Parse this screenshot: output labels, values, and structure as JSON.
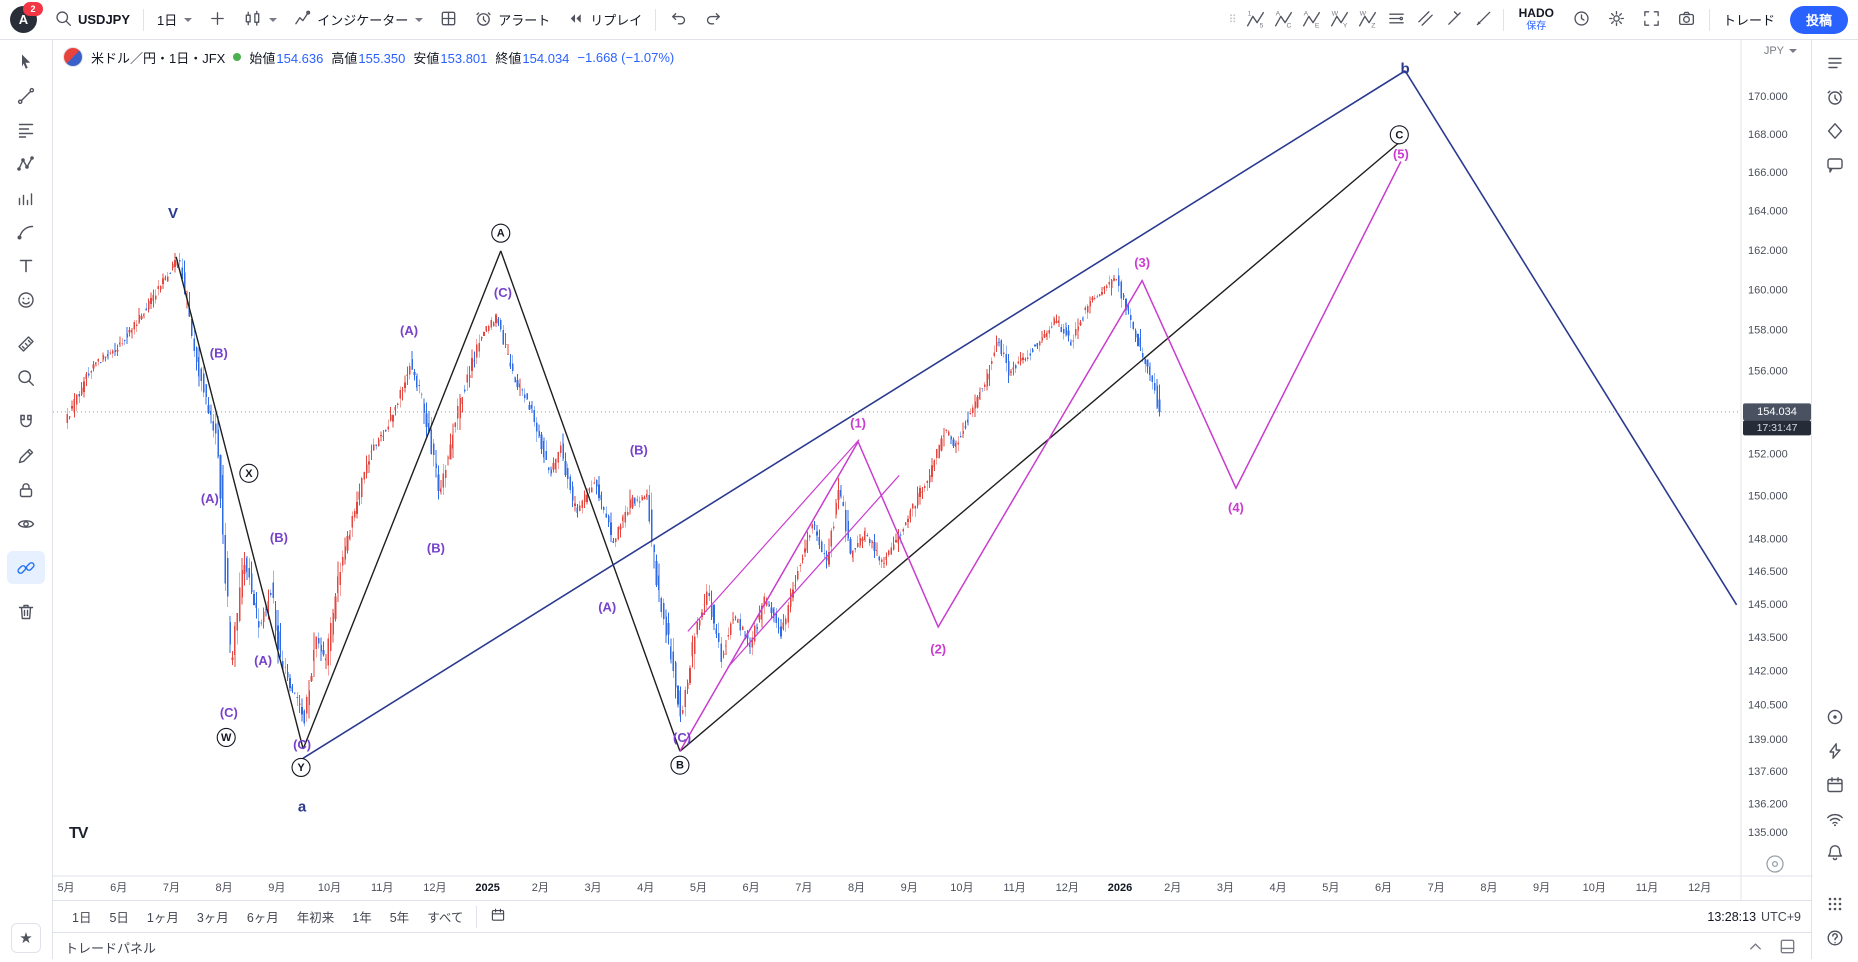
{
  "topbar": {
    "avatar_initial": "A",
    "notification_badge": "2",
    "symbol": "USDJPY",
    "interval_label": "1日",
    "indicators_label": "インジケーター",
    "alert_label": "アラート",
    "replay_label": "リプレイ",
    "wave_tools": [
      {
        "name": "elliott-impulse-wave-tool",
        "letters": [
          "1",
          "5"
        ]
      },
      {
        "name": "elliott-correction-wave-tool",
        "letters": [
          "A",
          "C"
        ]
      },
      {
        "name": "elliott-triangle-wave-tool",
        "letters": [
          "A",
          "E"
        ]
      },
      {
        "name": "elliott-double-combo-tool",
        "letters": [
          "W",
          "Y"
        ]
      },
      {
        "name": "elliott-triple-combo-tool",
        "letters": [
          "W",
          "Z"
        ]
      }
    ],
    "template_name": "HADO",
    "save_label": "保存",
    "trade_label": "トレード",
    "publish_label": "投稿",
    "accent_color": "#2962ff"
  },
  "legend": {
    "title": "米ドル／円・1日・JFX",
    "market_open_color": "#4caf50",
    "open_label": "始値",
    "open": "154.636",
    "high_label": "高値",
    "high": "155.350",
    "low_label": "安値",
    "low": "153.801",
    "close_label": "終値",
    "close": "154.034",
    "change": "−1.668 (−1.07%)",
    "value_color": "#2962ff"
  },
  "price_scale": {
    "currency": "JPY",
    "labels": [
      "170.000",
      "168.000",
      "166.000",
      "164.000",
      "162.000",
      "160.000",
      "158.000",
      "156.000",
      "152.000",
      "150.000",
      "148.000",
      "146.500",
      "145.000",
      "143.500",
      "142.000",
      "140.500",
      "139.000",
      "137.600",
      "136.200",
      "135.000"
    ],
    "last_price": "154.034",
    "countdown": "17:31:47"
  },
  "time_scale": {
    "labels": [
      "5月",
      "6月",
      "7月",
      "8月",
      "9月",
      "10月",
      "11月",
      "12月",
      "2025",
      "2月",
      "3月",
      "4月",
      "5月",
      "6月",
      "7月",
      "8月",
      "9月",
      "10月",
      "11月",
      "12月",
      "2026",
      "2月",
      "3月",
      "4月",
      "5月",
      "6月",
      "7月",
      "8月",
      "9月",
      "10月",
      "11月",
      "12月"
    ]
  },
  "range_toolbar": {
    "ranges": [
      "1日",
      "5日",
      "1ヶ月",
      "3ヶ月",
      "6ヶ月",
      "年初来",
      "1年",
      "5年",
      "すべて"
    ],
    "clock": "13:28:13",
    "timezone": "UTC+9"
  },
  "trade_panel": {
    "label": "トレードパネル"
  },
  "left_toolbar": {
    "tools": [
      {
        "name": "cursor-tool"
      },
      {
        "name": "trend-line-tool"
      },
      {
        "name": "fib-retracement-tool"
      },
      {
        "name": "pattern-tool"
      },
      {
        "name": "forecast-tool"
      },
      {
        "name": "brush-tool"
      },
      {
        "name": "text-tool"
      },
      {
        "name": "emoji-tool"
      },
      {
        "name": "measure-tool"
      },
      {
        "name": "zoom-tool"
      },
      {
        "name": "magnet-tool"
      },
      {
        "name": "draw-tool"
      },
      {
        "name": "lock-drawings-tool"
      },
      {
        "name": "hide-drawings-tool"
      },
      {
        "name": "sync-drawings-tool",
        "active": true
      },
      {
        "name": "remove-drawings-tool"
      }
    ],
    "favorites_star": "★"
  },
  "right_sidebar": {
    "top_icons": [
      {
        "name": "watchlist-icon"
      },
      {
        "name": "alerts-clock-icon"
      },
      {
        "name": "hotlists-icon"
      },
      {
        "name": "ideas-chat-icon"
      }
    ],
    "bottom_icons": [
      {
        "name": "object-tree-icon"
      },
      {
        "name": "screener-icon"
      },
      {
        "name": "calendar-icon"
      },
      {
        "name": "streams-icon"
      },
      {
        "name": "notifications-icon"
      }
    ],
    "corner_icons": [
      {
        "name": "apps-grid-icon"
      },
      {
        "name": "help-icon"
      }
    ]
  },
  "chart_data": {
    "type": "candlestick",
    "symbol": "USDJPY",
    "interval": "1日",
    "exchange": "JFX",
    "today_ohlc": {
      "open": 154.636,
      "high": 155.35,
      "low": 153.801,
      "close": 154.034,
      "change": -1.668,
      "change_pct": -1.07
    },
    "last_price": 154.034,
    "countdown": "17:31:47",
    "price_axis": {
      "min": 135.0,
      "max": 170.0,
      "scale": "log"
    },
    "candles_per_month": 22,
    "months_span": 20.78,
    "price_path_anchors": [
      [
        0,
        153.5
      ],
      [
        0.5,
        156.2
      ],
      [
        1.0,
        157.2
      ],
      [
        1.5,
        159.0
      ],
      [
        2.0,
        161.0
      ],
      [
        2.15,
        161.8
      ],
      [
        2.5,
        156.5
      ],
      [
        2.9,
        152.5
      ],
      [
        3.05,
        146.5
      ],
      [
        3.15,
        142.0
      ],
      [
        3.4,
        147.2
      ],
      [
        3.7,
        143.9
      ],
      [
        3.9,
        145.8
      ],
      [
        4.1,
        142.5
      ],
      [
        4.35,
        141.0
      ],
      [
        4.55,
        139.8
      ],
      [
        4.75,
        143.5
      ],
      [
        4.95,
        142.3
      ],
      [
        5.2,
        146.5
      ],
      [
        5.5,
        149.3
      ],
      [
        5.8,
        152.2
      ],
      [
        6.05,
        153.0
      ],
      [
        6.3,
        154.3
      ],
      [
        6.55,
        156.5
      ],
      [
        6.8,
        154.5
      ],
      [
        7.1,
        150.2
      ],
      [
        7.5,
        154.5
      ],
      [
        7.9,
        157.8
      ],
      [
        8.2,
        158.7
      ],
      [
        8.5,
        155.8
      ],
      [
        8.85,
        154.2
      ],
      [
        9.2,
        151.0
      ],
      [
        9.4,
        152.3
      ],
      [
        9.7,
        149.2
      ],
      [
        10.05,
        150.8
      ],
      [
        10.4,
        147.8
      ],
      [
        10.75,
        149.8
      ],
      [
        11.05,
        150.0
      ],
      [
        11.25,
        145.8
      ],
      [
        11.5,
        142.8
      ],
      [
        11.7,
        139.9
      ],
      [
        11.95,
        143.8
      ],
      [
        12.2,
        145.6
      ],
      [
        12.45,
        142.7
      ],
      [
        12.7,
        144.5
      ],
      [
        13.0,
        143.2
      ],
      [
        13.3,
        145.3
      ],
      [
        13.6,
        143.7
      ],
      [
        13.9,
        146.5
      ],
      [
        14.2,
        148.8
      ],
      [
        14.45,
        147.0
      ],
      [
        14.7,
        150.4
      ],
      [
        14.9,
        147.3
      ],
      [
        15.2,
        148.3
      ],
      [
        15.5,
        146.9
      ],
      [
        15.8,
        148.1
      ],
      [
        16.1,
        149.6
      ],
      [
        16.4,
        151.0
      ],
      [
        16.7,
        153.2
      ],
      [
        16.9,
        152.4
      ],
      [
        17.2,
        154.1
      ],
      [
        17.5,
        155.7
      ],
      [
        17.7,
        157.6
      ],
      [
        17.9,
        156.0
      ],
      [
        18.2,
        156.6
      ],
      [
        18.5,
        157.5
      ],
      [
        18.8,
        158.6
      ],
      [
        19.1,
        157.4
      ],
      [
        19.4,
        159.3
      ],
      [
        19.7,
        160.0
      ],
      [
        19.95,
        160.6
      ],
      [
        20.15,
        159.0
      ],
      [
        20.4,
        157.2
      ],
      [
        20.6,
        155.8
      ],
      [
        20.78,
        154.03
      ]
    ],
    "colors": {
      "up": "#e3473f",
      "down": "#2f6be4",
      "black": "#1e1e1e",
      "navy": "#2b3a8f",
      "purple": "#7642cc",
      "magenta": "#c93ccf",
      "last_price_line": "#9598a1",
      "badge_bg": "#4a5262",
      "countdown_bg": "#262b38"
    },
    "wave_lines": [
      {
        "name": "black-decline-1",
        "color": "black",
        "w": 1.4,
        "points": [
          [
            2.09,
            161.7
          ],
          [
            4.5,
            138.6
          ]
        ]
      },
      {
        "name": "black-advance-1",
        "color": "black",
        "w": 1.4,
        "points": [
          [
            4.5,
            138.6
          ],
          [
            8.25,
            162.0
          ]
        ]
      },
      {
        "name": "black-decline-2",
        "color": "black",
        "w": 1.4,
        "points": [
          [
            8.25,
            162.0
          ],
          [
            11.65,
            138.5
          ]
        ]
      },
      {
        "name": "black-advance-2",
        "color": "black",
        "w": 1.4,
        "points": [
          [
            11.65,
            138.5
          ],
          [
            25.3,
            167.6
          ]
        ]
      },
      {
        "name": "navy-channel-up",
        "color": "navy",
        "w": 1.6,
        "points": [
          [
            4.5,
            138.2
          ],
          [
            25.41,
            171.4
          ]
        ]
      },
      {
        "name": "navy-projection-down",
        "color": "navy",
        "w": 1.6,
        "points": [
          [
            25.41,
            171.4
          ],
          [
            31.7,
            145.0
          ]
        ]
      },
      {
        "name": "magenta-impulse",
        "color": "magenta",
        "w": 1.5,
        "points": [
          [
            11.65,
            138.5
          ],
          [
            15.03,
            152.6
          ],
          [
            16.55,
            144.0
          ],
          [
            20.42,
            160.5
          ],
          [
            22.2,
            150.4
          ],
          [
            25.33,
            166.6
          ]
        ]
      },
      {
        "name": "magenta-channel-a",
        "color": "magenta",
        "w": 1.2,
        "points": [
          [
            11.8,
            143.8
          ],
          [
            15.05,
            152.7
          ]
        ]
      },
      {
        "name": "magenta-channel-b",
        "color": "magenta",
        "w": 1.2,
        "points": [
          [
            12.56,
            142.2
          ],
          [
            15.81,
            151.0
          ]
        ]
      }
    ],
    "wave_labels": [
      {
        "text": "V",
        "m": 2.03,
        "p": 163.9,
        "style": "navy"
      },
      {
        "text": "(B)",
        "m": 2.9,
        "p": 156.9,
        "style": "purple"
      },
      {
        "text": "(A)",
        "m": 2.73,
        "p": 149.9,
        "style": "purple"
      },
      {
        "text": "X",
        "m": 3.47,
        "p": 151.1,
        "style": "circled"
      },
      {
        "text": "(B)",
        "m": 4.04,
        "p": 148.1,
        "style": "purple"
      },
      {
        "text": "(A)",
        "m": 3.74,
        "p": 142.5,
        "style": "purple"
      },
      {
        "text": "(C)",
        "m": 3.09,
        "p": 140.2,
        "style": "purple"
      },
      {
        "text": "W",
        "m": 3.04,
        "p": 139.1,
        "style": "circled"
      },
      {
        "text": "(C)",
        "m": 4.48,
        "p": 138.8,
        "style": "purple"
      },
      {
        "text": "Y",
        "m": 4.46,
        "p": 137.8,
        "style": "circled"
      },
      {
        "text": "a",
        "m": 4.48,
        "p": 136.1,
        "style": "navy"
      },
      {
        "text": "(A)",
        "m": 6.51,
        "p": 158.0,
        "style": "purple"
      },
      {
        "text": "(C)",
        "m": 8.29,
        "p": 159.9,
        "style": "purple"
      },
      {
        "text": "A",
        "m": 8.25,
        "p": 162.9,
        "style": "circled"
      },
      {
        "text": "(B)",
        "m": 7.02,
        "p": 147.6,
        "style": "purple"
      },
      {
        "text": "(A)",
        "m": 10.27,
        "p": 144.9,
        "style": "purple"
      },
      {
        "text": "(B)",
        "m": 10.87,
        "p": 152.2,
        "style": "purple"
      },
      {
        "text": "(C)",
        "m": 11.69,
        "p": 139.1,
        "style": "purple"
      },
      {
        "text": "B",
        "m": 11.65,
        "p": 137.9,
        "style": "circled"
      },
      {
        "text": "(1)",
        "m": 15.03,
        "p": 153.5,
        "style": "magenta"
      },
      {
        "text": "(2)",
        "m": 16.55,
        "p": 143.0,
        "style": "magenta"
      },
      {
        "text": "(3)",
        "m": 20.42,
        "p": 161.4,
        "style": "magenta"
      },
      {
        "text": "(4)",
        "m": 22.2,
        "p": 149.5,
        "style": "magenta"
      },
      {
        "text": "(5)",
        "m": 25.33,
        "p": 167.0,
        "style": "magenta"
      },
      {
        "text": "C",
        "m": 25.3,
        "p": 168.0,
        "style": "circled"
      },
      {
        "text": "b",
        "m": 25.41,
        "p": 171.5,
        "style": "navy"
      }
    ]
  }
}
